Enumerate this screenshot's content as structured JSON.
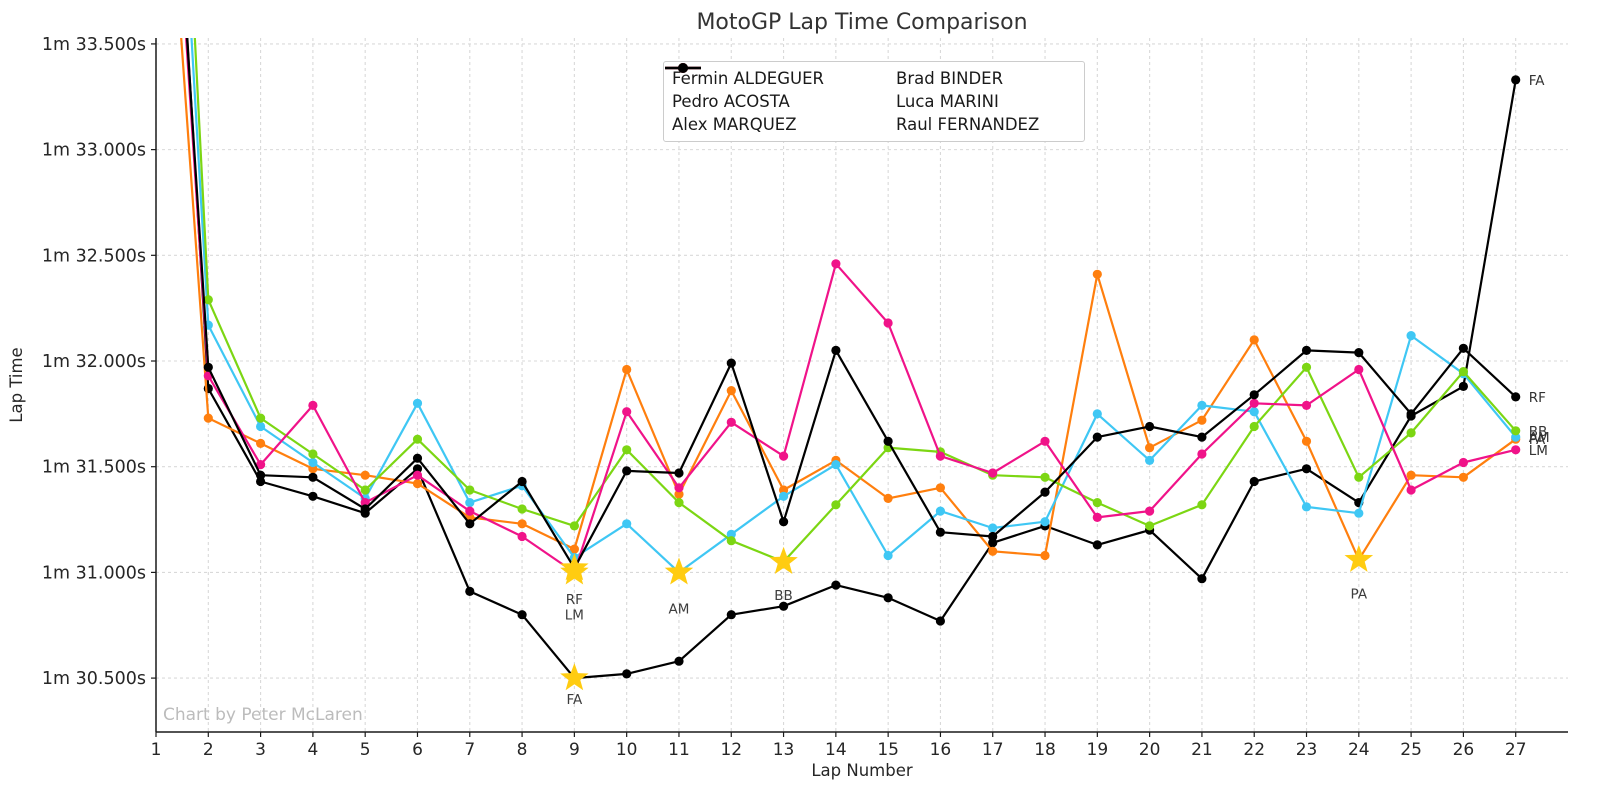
{
  "title": "MotoGP Lap Time Comparison",
  "watermark": "Chart by Peter McLaren",
  "axes": {
    "x_label": "Lap Number",
    "y_label": "Lap Time",
    "x_ticks": [
      1,
      2,
      3,
      4,
      5,
      6,
      7,
      8,
      9,
      10,
      11,
      12,
      13,
      14,
      15,
      16,
      17,
      18,
      19,
      20,
      21,
      22,
      23,
      24,
      25,
      26,
      27
    ],
    "y_ticks": [
      {
        "v": 33.5,
        "label": "1m 33.500s"
      },
      {
        "v": 33.0,
        "label": "1m 33.000s"
      },
      {
        "v": 32.5,
        "label": "1m 32.500s"
      },
      {
        "v": 32.0,
        "label": "1m 32.000s"
      },
      {
        "v": 31.5,
        "label": "1m 31.500s"
      },
      {
        "v": 31.0,
        "label": "1m 31.000s"
      },
      {
        "v": 30.5,
        "label": "1m 30.500s"
      }
    ],
    "xlim": [
      1,
      28
    ],
    "ylim": [
      30.245,
      33.528
    ]
  },
  "colors": {
    "grid": "#d9d9d9",
    "spine": "#1a1a1a",
    "tick_text": "#262626",
    "title_text": "#333333",
    "watermark_text": "#bcbcbc",
    "annotation_text": "#3d3d3d",
    "star": "#ffcc11"
  },
  "chart_data": {
    "type": "line",
    "title": "MotoGP Lap Time Comparison",
    "xlabel": "Lap Number",
    "ylabel": "Lap Time",
    "x": [
      1,
      2,
      3,
      4,
      5,
      6,
      7,
      8,
      9,
      10,
      11,
      12,
      13,
      14,
      15,
      16,
      17,
      18,
      19,
      20,
      21,
      22,
      23,
      24,
      25,
      26,
      27
    ],
    "y_unit": "seconds after 1m (values are 90 + s shown as 1m xx.xxxs)",
    "legend_position": "upper center, 2 columns",
    "grid": true,
    "series": [
      {
        "id": "FA",
        "label": "Fermin ALDEGUER",
        "color": "#000000",
        "values": [
          36.0,
          31.87,
          31.43,
          31.36,
          31.28,
          31.49,
          30.91,
          30.8,
          30.5,
          30.52,
          30.58,
          30.8,
          30.84,
          30.94,
          30.88,
          30.77,
          31.14,
          31.22,
          31.13,
          31.2,
          30.97,
          31.43,
          31.49,
          31.33,
          31.74,
          31.88,
          33.33
        ],
        "fastest_lap": {
          "lap": 9,
          "value": 30.5
        }
      },
      {
        "id": "PA",
        "label": "Pedro ACOSTA",
        "color": "#ff7f0e",
        "values": [
          35.2,
          31.73,
          31.61,
          31.49,
          31.46,
          31.42,
          31.26,
          31.23,
          31.11,
          31.96,
          31.37,
          31.86,
          31.39,
          31.53,
          31.35,
          31.4,
          31.1,
          31.08,
          32.41,
          31.59,
          31.72,
          32.1,
          31.62,
          31.06,
          31.46,
          31.45,
          31.63
        ],
        "fastest_lap": {
          "lap": 24,
          "value": 31.06
        }
      },
      {
        "id": "AM",
        "label": "Alex MARQUEZ",
        "color": "#3fc7f4",
        "values": [
          36.4,
          32.17,
          31.69,
          31.52,
          31.35,
          31.8,
          31.33,
          31.41,
          31.07,
          31.23,
          31.0,
          31.18,
          31.36,
          31.51,
          31.08,
          31.29,
          31.21,
          31.24,
          31.75,
          31.53,
          31.79,
          31.76,
          31.31,
          31.28,
          32.12,
          31.94,
          31.64
        ],
        "fastest_lap": {
          "lap": 11,
          "value": 31.0
        }
      },
      {
        "id": "BB",
        "label": "Brad BINDER",
        "color": "#7cd613",
        "values": [
          37.1,
          32.29,
          31.73,
          31.56,
          31.39,
          31.63,
          31.39,
          31.3,
          31.22,
          31.58,
          31.33,
          31.15,
          31.05,
          31.32,
          31.59,
          31.57,
          31.46,
          31.45,
          31.33,
          31.22,
          31.32,
          31.69,
          31.97,
          31.45,
          31.66,
          31.95,
          31.67
        ],
        "fastest_lap": {
          "lap": 13,
          "value": 31.05
        }
      },
      {
        "id": "LM",
        "label": "Luca MARINI",
        "color": "#f01389",
        "values": [
          35.7,
          31.93,
          31.51,
          31.79,
          31.33,
          31.46,
          31.29,
          31.17,
          31.0,
          31.76,
          31.4,
          31.71,
          31.55,
          32.46,
          32.18,
          31.55,
          31.47,
          31.62,
          31.26,
          31.29,
          31.56,
          31.8,
          31.79,
          31.96,
          31.39,
          31.52,
          31.58
        ],
        "fastest_lap": {
          "lap": 9,
          "value": 31.0
        }
      },
      {
        "id": "RF",
        "label": "Raul FERNANDEZ",
        "color": "#000000",
        "values": [
          35.8,
          31.97,
          31.46,
          31.45,
          31.3,
          31.54,
          31.23,
          31.43,
          31.02,
          31.48,
          31.47,
          31.99,
          31.24,
          32.05,
          31.62,
          31.19,
          31.17,
          31.38,
          31.64,
          31.69,
          31.64,
          31.84,
          32.05,
          32.04,
          31.75,
          32.06,
          31.83
        ],
        "fastest_lap": {
          "lap": 9,
          "value": 31.02
        }
      }
    ],
    "fastest_lap_annotations": [
      {
        "text": "FA",
        "lap": 9,
        "value": 30.5,
        "dy": 26
      },
      {
        "text": "RF",
        "lap": 9,
        "value": 31.02,
        "dy": 36
      },
      {
        "text": "LM",
        "lap": 9,
        "value": 31.0,
        "dy": 47
      },
      {
        "text": "AM",
        "lap": 11,
        "value": 31.0,
        "dy": 41
      },
      {
        "text": "BB",
        "lap": 13,
        "value": 31.05,
        "dy": 38
      },
      {
        "text": "PA",
        "lap": 24,
        "value": 31.06,
        "dy": 39
      }
    ],
    "end_labels": [
      {
        "text": "FA",
        "lap": 27,
        "value": 33.33
      },
      {
        "text": "RF",
        "lap": 27,
        "value": 31.83
      },
      {
        "text": "BB",
        "lap": 27,
        "value": 31.67
      },
      {
        "text": "PA",
        "lap": 27,
        "value": 31.63
      },
      {
        "text": "AM",
        "lap": 27,
        "value": 31.64
      },
      {
        "text": "LM",
        "lap": 27,
        "value": 31.58
      }
    ]
  }
}
